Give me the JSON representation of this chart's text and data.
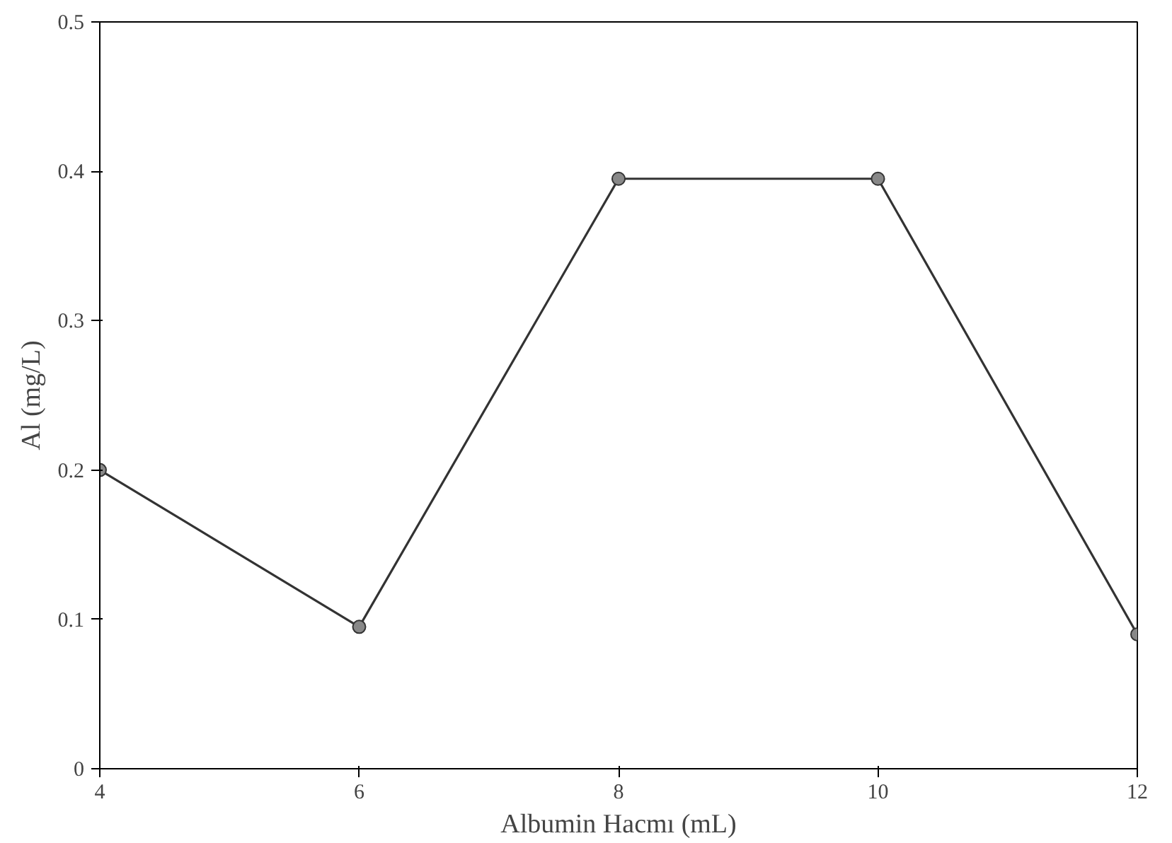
{
  "chart_data": {
    "type": "line",
    "xlabel": "Albumin Hacmı (mL)",
    "ylabel": "Al (mg/L)",
    "x": [
      4,
      6,
      8,
      10,
      12
    ],
    "series": [
      {
        "color": "#333333",
        "values": [
          0.2,
          0.095,
          0.395,
          0.395,
          0.09
        ]
      }
    ],
    "xlim": [
      4,
      12
    ],
    "ylim": [
      0,
      0.5
    ],
    "xticks": [
      4,
      6,
      8,
      10,
      12
    ],
    "yticks": [
      0,
      0.1,
      0.2,
      0.3,
      0.4,
      0.5
    ],
    "grid": false,
    "marker": "circle",
    "line_style": "solid"
  }
}
